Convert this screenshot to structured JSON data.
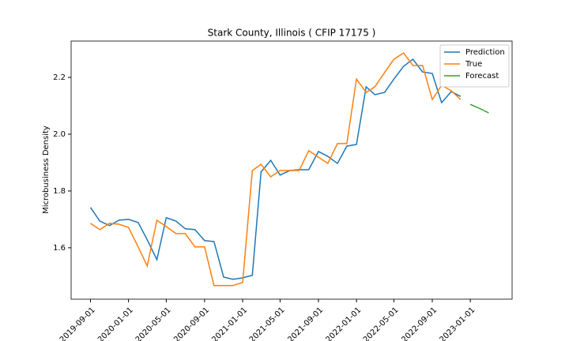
{
  "chart_data": {
    "type": "line",
    "title": "Stark County, Illinois ( CFIP 17175 )",
    "y_label": "Microbusiness Density",
    "xlim": [
      "2019-07-01",
      "2023-05-15"
    ],
    "xticks": [
      "2019-09-01",
      "2020-01-01",
      "2020-05-01",
      "2020-09-01",
      "2021-01-01",
      "2021-05-01",
      "2021-09-01",
      "2022-01-01",
      "2022-05-01",
      "2022-09-01",
      "2023-01-01"
    ],
    "ylim": [
      1.419,
      2.328
    ],
    "yticks": [
      1.6,
      1.8,
      {
        "value": 2,
        "label": "2.0"
      },
      2.2
    ],
    "grid": false,
    "legend": "upper right",
    "series": [
      {
        "name": "Prediction",
        "color": "#1f77b4",
        "x": [
          "2019-09-01",
          "2019-10-01",
          "2019-11-01",
          "2019-12-01",
          "2020-01-01",
          "2020-02-01",
          "2020-03-01",
          "2020-04-01",
          "2020-05-01",
          "2020-06-01",
          "2020-07-01",
          "2020-08-01",
          "2020-09-01",
          "2020-10-01",
          "2020-11-01",
          "2020-12-01",
          "2021-01-01",
          "2021-02-01",
          "2021-03-01",
          "2021-04-01",
          "2021-05-01",
          "2021-06-01",
          "2021-07-01",
          "2021-08-01",
          "2021-09-01",
          "2021-10-01",
          "2021-11-01",
          "2021-12-01",
          "2022-01-01",
          "2022-02-01",
          "2022-03-01",
          "2022-04-01",
          "2022-05-01",
          "2022-06-01",
          "2022-07-01",
          "2022-08-01",
          "2022-09-01",
          "2022-10-01",
          "2022-11-01",
          "2022-12-01"
        ],
        "values": [
          1.742,
          1.694,
          1.678,
          1.697,
          1.7,
          1.689,
          1.628,
          1.558,
          1.706,
          1.694,
          1.667,
          1.664,
          1.625,
          1.622,
          1.497,
          1.489,
          1.494,
          1.503,
          1.867,
          1.908,
          1.856,
          1.872,
          1.875,
          1.875,
          1.939,
          1.922,
          1.897,
          1.958,
          1.964,
          2.167,
          2.139,
          2.147,
          2.194,
          2.239,
          2.264,
          2.219,
          2.214,
          2.111,
          2.15,
          2.133
        ]
      },
      {
        "name": "True",
        "color": "#ff7f0e",
        "x": [
          "2019-09-01",
          "2019-10-01",
          "2019-11-01",
          "2019-12-01",
          "2020-01-01",
          "2020-02-01",
          "2020-03-01",
          "2020-04-01",
          "2020-05-01",
          "2020-06-01",
          "2020-07-01",
          "2020-08-01",
          "2020-09-01",
          "2020-10-01",
          "2020-11-01",
          "2020-12-01",
          "2021-01-01",
          "2021-02-01",
          "2021-03-01",
          "2021-04-01",
          "2021-05-01",
          "2021-06-01",
          "2021-07-01",
          "2021-08-01",
          "2021-09-01",
          "2021-10-01",
          "2021-11-01",
          "2021-12-01",
          "2022-01-01",
          "2022-02-01",
          "2022-03-01",
          "2022-04-01",
          "2022-05-01",
          "2022-06-01",
          "2022-07-01",
          "2022-08-01",
          "2022-09-01",
          "2022-10-01",
          "2022-11-01",
          "2022-12-01"
        ],
        "values": [
          1.686,
          1.664,
          1.686,
          1.683,
          1.672,
          1.603,
          1.536,
          1.697,
          1.675,
          1.65,
          1.65,
          1.603,
          1.603,
          1.467,
          1.467,
          1.467,
          1.478,
          1.872,
          1.894,
          1.85,
          1.872,
          1.872,
          1.872,
          1.942,
          1.919,
          1.897,
          1.967,
          1.967,
          2.194,
          2.147,
          2.167,
          2.217,
          2.264,
          2.286,
          2.242,
          2.242,
          2.122,
          2.172,
          2.153,
          2.122
        ]
      },
      {
        "name": "Forecast",
        "color": "#2ca02c",
        "x": [
          "2023-01-01",
          "2023-02-01",
          "2023-03-01"
        ],
        "values": [
          2.105,
          2.09,
          2.075
        ]
      }
    ]
  }
}
